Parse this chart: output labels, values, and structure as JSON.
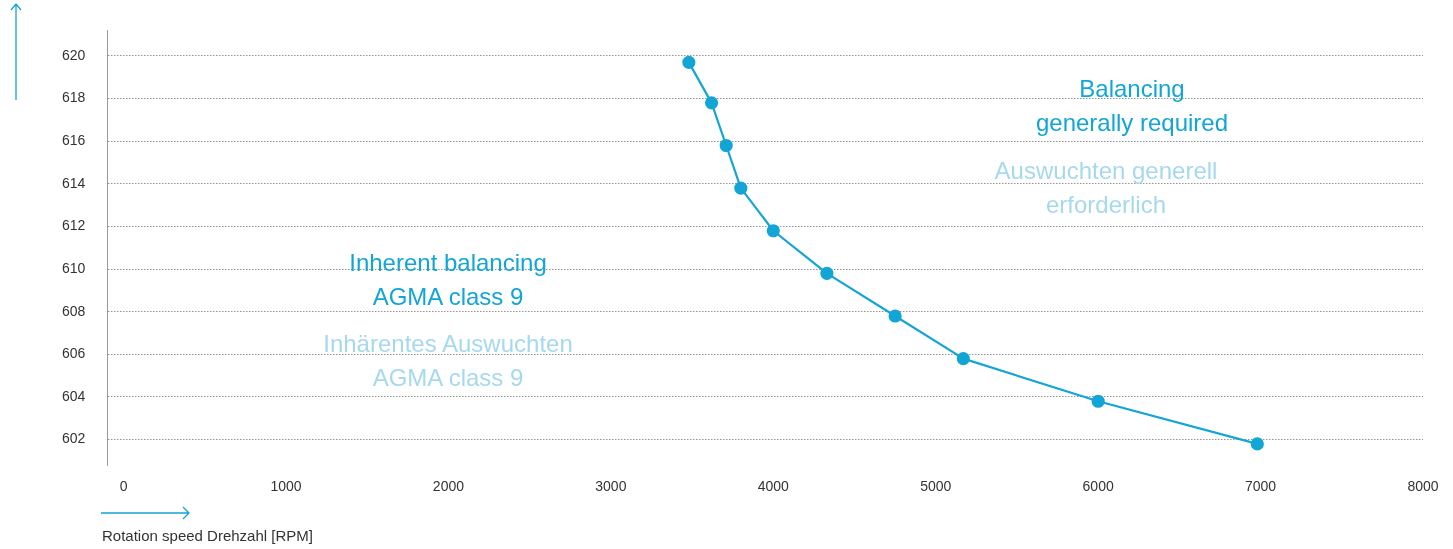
{
  "chart_data": {
    "type": "line",
    "xlabel": "Rotation speed Drehzahl [RPM]",
    "x": [
      3480,
      3620,
      3710,
      3800,
      4000,
      4330,
      4750,
      5170,
      6000,
      6980
    ],
    "series": [
      {
        "color": "#13a5d6",
        "values": [
          619.7,
          617.8,
          615.8,
          613.8,
          611.8,
          609.8,
          607.8,
          605.8,
          603.8,
          601.8
        ]
      }
    ],
    "xlim": [
      -100,
      8000
    ],
    "xticks": [
      0,
      1000,
      2000,
      3000,
      4000,
      5000,
      6000,
      7000,
      8000
    ],
    "ylim": [
      600.8,
      621.2
    ],
    "yticks": [
      602,
      604,
      606,
      608,
      610,
      612,
      614,
      616,
      618,
      620
    ],
    "grid": "y",
    "legend": false,
    "marker": "circle",
    "line_style": "solid",
    "annotations": [
      "Balancing\ngenerally required",
      "Auswuchten generell\nerforderlich",
      "Inherent balancing\nAGMA class 9",
      "Inhärentes Auswuchten\nAGMA class 9"
    ]
  }
}
